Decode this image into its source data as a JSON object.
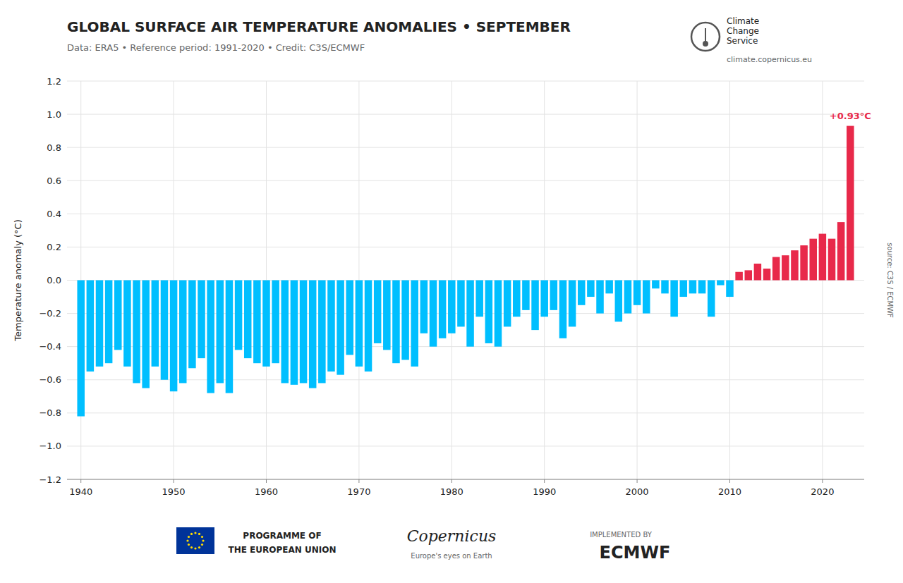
{
  "chart_data": {
    "type": "bar",
    "title": "GLOBAL SURFACE AIR TEMPERATURE ANOMALIES • SEPTEMBER",
    "subtitle": "Data: ERA5 • Reference period: 1991-2020 • Credit: C3S/ECMWF",
    "y_label": "Temperature anomaly (°C)",
    "x": [
      1940,
      1941,
      1942,
      1943,
      1944,
      1945,
      1946,
      1947,
      1948,
      1949,
      1950,
      1951,
      1952,
      1953,
      1954,
      1955,
      1956,
      1957,
      1958,
      1959,
      1960,
      1961,
      1962,
      1963,
      1964,
      1965,
      1966,
      1967,
      1968,
      1969,
      1970,
      1971,
      1972,
      1973,
      1974,
      1975,
      1976,
      1977,
      1978,
      1979,
      1980,
      1981,
      1982,
      1983,
      1984,
      1985,
      1986,
      1987,
      1988,
      1989,
      1990,
      1991,
      1992,
      1993,
      1994,
      1995,
      1996,
      1997,
      1998,
      1999,
      2000,
      2001,
      2002,
      2003,
      2004,
      2005,
      2006,
      2007,
      2008,
      2009,
      2010,
      2011,
      2012,
      2013,
      2014,
      2015,
      2016,
      2017,
      2018,
      2019,
      2020,
      2021,
      2022,
      2023
    ],
    "values": [
      -0.82,
      -0.55,
      -0.52,
      -0.5,
      -0.42,
      -0.52,
      -0.62,
      -0.65,
      -0.52,
      -0.6,
      -0.67,
      -0.62,
      -0.53,
      -0.47,
      -0.68,
      -0.62,
      -0.68,
      -0.42,
      -0.47,
      -0.5,
      -0.52,
      -0.5,
      -0.62,
      -0.63,
      -0.62,
      -0.65,
      -0.62,
      -0.55,
      -0.57,
      -0.45,
      -0.52,
      -0.55,
      -0.38,
      -0.42,
      -0.5,
      -0.48,
      -0.52,
      -0.32,
      -0.4,
      -0.35,
      -0.32,
      -0.28,
      -0.4,
      -0.22,
      -0.38,
      -0.4,
      -0.28,
      -0.22,
      -0.18,
      -0.3,
      -0.22,
      -0.18,
      -0.35,
      -0.28,
      -0.15,
      -0.1,
      -0.2,
      -0.08,
      -0.25,
      -0.2,
      -0.15,
      -0.2,
      -0.05,
      -0.08,
      -0.22,
      -0.1,
      -0.08,
      -0.08,
      -0.22,
      -0.03,
      -0.1,
      0.05,
      0.06,
      0.1,
      0.07,
      0.14,
      0.15,
      0.18,
      0.21,
      0.25,
      0.28,
      0.25,
      0.35,
      0.93
    ],
    "colors": [
      "#00bfff",
      "#00bfff",
      "#00bfff",
      "#00bfff",
      "#00bfff",
      "#00bfff",
      "#00bfff",
      "#00bfff",
      "#00bfff",
      "#00bfff",
      "#00bfff",
      "#00bfff",
      "#00bfff",
      "#00bfff",
      "#00bfff",
      "#00bfff",
      "#00bfff",
      "#00bfff",
      "#00bfff",
      "#00bfff",
      "#00bfff",
      "#00bfff",
      "#00bfff",
      "#00bfff",
      "#00bfff",
      "#00bfff",
      "#00bfff",
      "#00bfff",
      "#00bfff",
      "#00bfff",
      "#00bfff",
      "#00bfff",
      "#00bfff",
      "#00bfff",
      "#00bfff",
      "#00bfff",
      "#00bfff",
      "#00bfff",
      "#00bfff",
      "#00bfff",
      "#00bfff",
      "#00bfff",
      "#00bfff",
      "#00bfff",
      "#00bfff",
      "#00bfff",
      "#00bfff",
      "#00bfff",
      "#00bfff",
      "#00bfff",
      "#00bfff",
      "#00bfff",
      "#00bfff",
      "#00bfff",
      "#00bfff",
      "#00bfff",
      "#00bfff",
      "#00bfff",
      "#00bfff",
      "#00bfff",
      "#00bfff",
      "#00bfff",
      "#00bfff",
      "#00bfff",
      "#00bfff",
      "#00bfff",
      "#00bfff",
      "#00bfff",
      "#00bfff",
      "#00bfff",
      "#00bfff",
      "#e8294a",
      "#e8294a",
      "#e8294a",
      "#e8294a",
      "#e8294a",
      "#e8294a",
      "#e8294a",
      "#e8294a",
      "#e8294a",
      "#e8294a",
      "#e8294a",
      "#e8294a",
      "#e8294a"
    ],
    "xlim": [
      1938.5,
      2024.5
    ],
    "xticks": [
      1940,
      1950,
      1960,
      1970,
      1980,
      1990,
      2000,
      2010,
      2020
    ],
    "ylim": [
      -1.2,
      1.2
    ],
    "yticks": [
      {
        "value": -1.2,
        "label": "−1.2"
      },
      {
        "value": -1.0,
        "label": "−1.0"
      },
      {
        "value": -0.8,
        "label": "−0.8"
      },
      {
        "value": -0.6,
        "label": "−0.6"
      },
      {
        "value": -0.4,
        "label": "−0.4"
      },
      {
        "value": -0.2,
        "label": "−0.2"
      },
      {
        "value": 0.0,
        "label": "0.0"
      },
      {
        "value": 0.2,
        "label": "0.2"
      },
      {
        "value": 0.4,
        "label": "0.4"
      },
      {
        "value": 0.6,
        "label": "0.6"
      },
      {
        "value": 0.8,
        "label": "0.8"
      },
      {
        "value": 1.0,
        "label": "1.0"
      },
      {
        "value": 1.2,
        "label": "1.2"
      }
    ],
    "grid": true,
    "annotations": [
      {
        "text": "+0.93°C",
        "x": 2023,
        "y": 0.93
      },
      {
        "text": "Climate\nChange\nService"
      },
      {
        "text": "climate.copernicus.eu"
      },
      {
        "text": "PROGRAMME OF"
      },
      {
        "text": "THE EUROPEAN UNION"
      },
      {
        "text": "Copernicus"
      },
      {
        "text": "Europe's eyes on Earth"
      },
      {
        "text": "IMPLEMENTED BY"
      },
      {
        "text": "ECMWF"
      },
      {
        "text": "source: C3S / ECMWF"
      }
    ]
  }
}
